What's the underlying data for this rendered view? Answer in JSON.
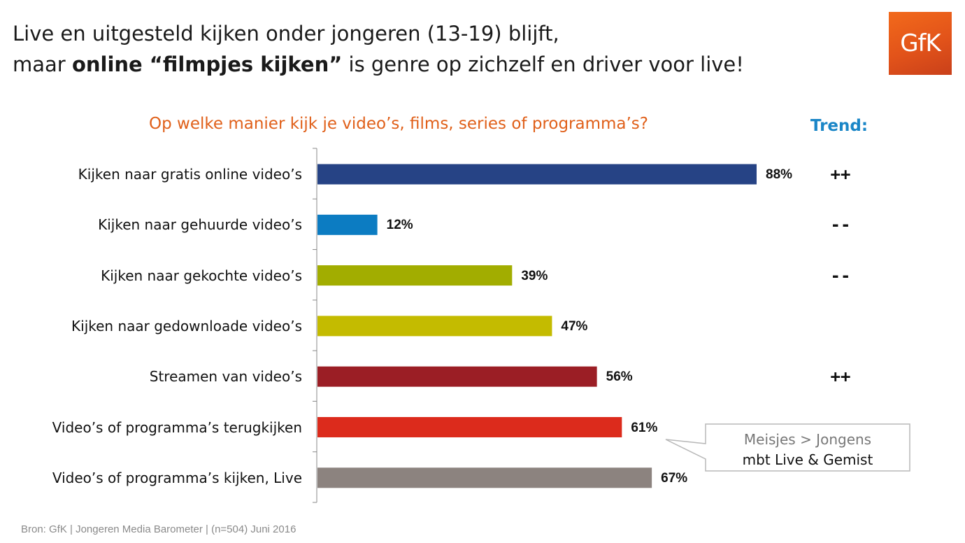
{
  "header": {
    "title_line1": "Live en uitgesteld kijken onder jongeren (13-19) blijft,",
    "title_line2_pre": "maar ",
    "title_line2_bold": "online “filmpjes kijken”",
    "title_line2_post": " is genre op zichzelf en driver voor live!",
    "logo_text": "GfK"
  },
  "chart_data": {
    "type": "bar",
    "orientation": "horizontal",
    "title": "Op welke manier kijk je video’s, films, series of programma’s?",
    "categories": [
      "Kijken naar gratis online video’s",
      "Kijken naar gehuurde video’s",
      "Kijken naar gekochte video’s",
      "Kijken naar gedownloade video’s",
      "Streamen van video’s",
      "Video’s of programma’s terugkijken",
      "Video’s of programma’s kijken, Live"
    ],
    "values": [
      88,
      12,
      39,
      47,
      56,
      61,
      67
    ],
    "value_labels": [
      "88%",
      "12%",
      "39%",
      "47%",
      "56%",
      "61%",
      "67%"
    ],
    "colors": [
      "#264385",
      "#0c7cc2",
      "#a2ad00",
      "#c4bb00",
      "#9b1e25",
      "#dc2b1c",
      "#8c837f"
    ],
    "xlim": [
      0,
      100
    ],
    "grid": false,
    "legend": "none"
  },
  "trend": {
    "title": "Trend:",
    "values": [
      "++",
      "--",
      "--",
      "",
      "++",
      "",
      ""
    ]
  },
  "callout": {
    "line1": "Meisjes > Jongens",
    "line2": "mbt Live & Gemist"
  },
  "source": "Bron: GfK | Jongeren Media Barometer | (n=504)  Juni  2016"
}
